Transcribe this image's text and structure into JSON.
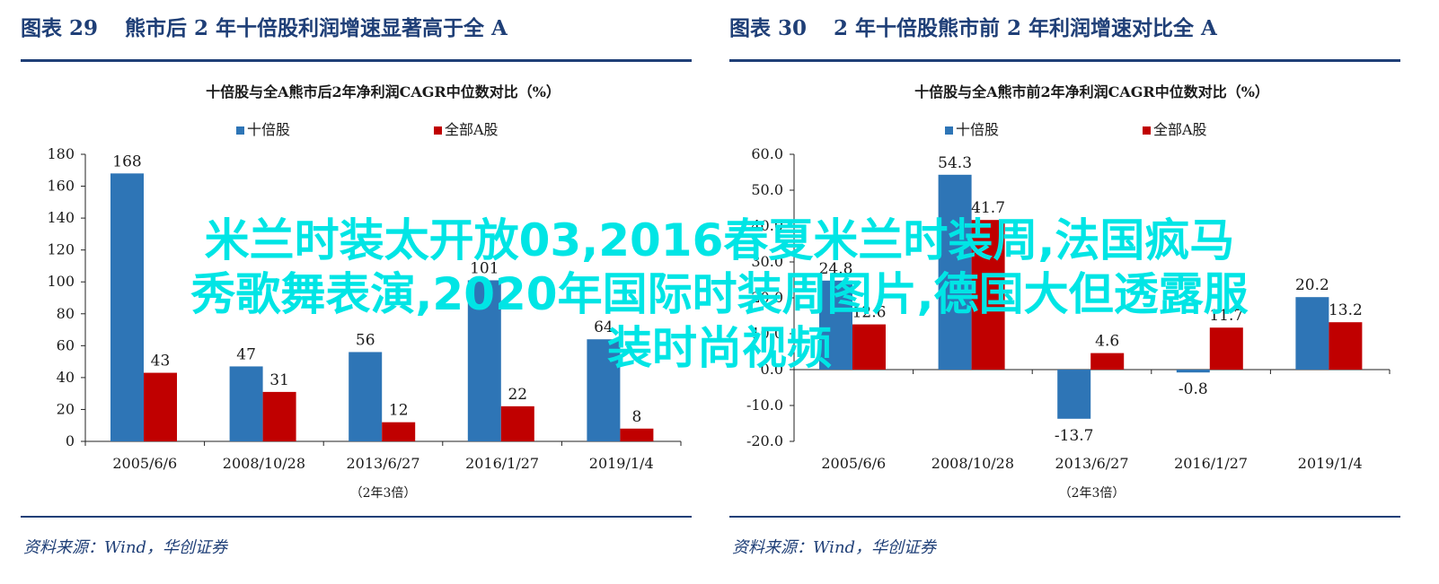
{
  "panels": [
    {
      "number": "图表 29",
      "heading": "熊市后 2 年十倍股利润增速显著高于全 A",
      "source": "资料来源：Wind，华创证券"
    },
    {
      "number": "图表 30",
      "heading": "2 年十倍股熊市前 2 年利润增速对比全 A",
      "source": "资料来源：Wind，华创证券"
    }
  ],
  "overlay": {
    "lines": [
      "米兰时装太开放03,2016春夏米兰时装周,法国疯马",
      "秀歌舞表演,2020年国际时装周图片,德国大但透露服",
      "装时尚视频"
    ],
    "color": "#00e5e5"
  },
  "chart_data": [
    {
      "type": "bar",
      "title": "十倍股与全A熊市后2年净利润CAGR中位数对比（%）",
      "categories": [
        "2005/6/6",
        "2008/10/28",
        "2013/6/27",
        "2016/1/27",
        "2019/1/4"
      ],
      "xnote": "（2年3倍）",
      "series": [
        {
          "name": "十倍股",
          "color": "#2e75b6",
          "values": [
            168,
            47,
            56,
            101,
            64
          ]
        },
        {
          "name": "全部A股",
          "color": "#c00000",
          "values": [
            43,
            31,
            12,
            22,
            8
          ]
        }
      ],
      "ylim": [
        0,
        180
      ],
      "yticks": [
        "0",
        "20",
        "40",
        "60",
        "80",
        "100",
        "120",
        "140",
        "160",
        "180"
      ],
      "legend": "top-center",
      "grid": false
    },
    {
      "type": "bar",
      "title": "十倍股与全A熊市前2年净利润CAGR中位数对比（%）",
      "categories": [
        "2005/6/6",
        "2008/10/28",
        "2013/6/27",
        "2016/1/27",
        "2019/1/4"
      ],
      "xnote": "（2年3倍）",
      "series": [
        {
          "name": "十倍股",
          "color": "#2e75b6",
          "values": [
            24.8,
            54.3,
            -13.7,
            -0.8,
            20.2
          ]
        },
        {
          "name": "全部A股",
          "color": "#c00000",
          "values": [
            12.6,
            41.7,
            4.6,
            11.7,
            13.2
          ]
        }
      ],
      "labels": [
        [
          "24.8",
          "54.3",
          "-13.7",
          "-0.8",
          "20.2"
        ],
        [
          "12.6",
          "41.7",
          "4.6",
          "11.7",
          "13.2"
        ]
      ],
      "ylim": [
        -20,
        60
      ],
      "yticks": [
        "-20.0",
        "-10.0",
        "0.0",
        "10.0",
        "20.0",
        "30.0",
        "40.0",
        "50.0",
        "60.0"
      ],
      "legend": "top-center",
      "grid": false
    }
  ]
}
